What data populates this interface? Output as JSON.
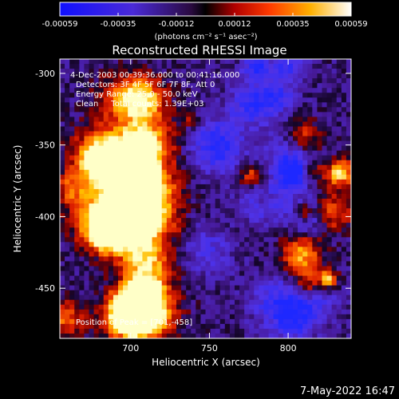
{
  "chart_data": {
    "type": "heatmap",
    "title": "Reconstructed RHESSI Image",
    "xlabel": "Heliocentric X (arcsec)",
    "ylabel": "Heliocentric Y (arcsec)",
    "xlim": [
      655,
      840
    ],
    "ylim": [
      -485,
      -290
    ],
    "x_ticks": [
      "700",
      "750",
      "800"
    ],
    "x_tick_values": [
      700,
      750,
      800
    ],
    "y_ticks": [
      "-300",
      "-350",
      "-400",
      "-450"
    ],
    "y_tick_values": [
      -300,
      -350,
      -400,
      -450
    ],
    "colorbar": {
      "label": "(photons cm⁻² s⁻¹ asec⁻²)",
      "ticks": [
        "-0.00059",
        "-0.00035",
        "-0.00012",
        "0.00012",
        "0.00035",
        "0.00059"
      ],
      "range": [
        -0.00059,
        0.00059
      ]
    },
    "info_lines": [
      "4-Dec-2003 00:39:36.000 to 00:41:16.000",
      "Detectors: 3F 4F 5F 6F 7F 8F, Att 0",
      "Energy Range: 25.0 - 50.0 keV",
      "Clean     Total counts: 1.39E+03"
    ],
    "peak_text": "Position of Peak = [701,-458]",
    "footer_date": "7-May-2022 16:47"
  }
}
